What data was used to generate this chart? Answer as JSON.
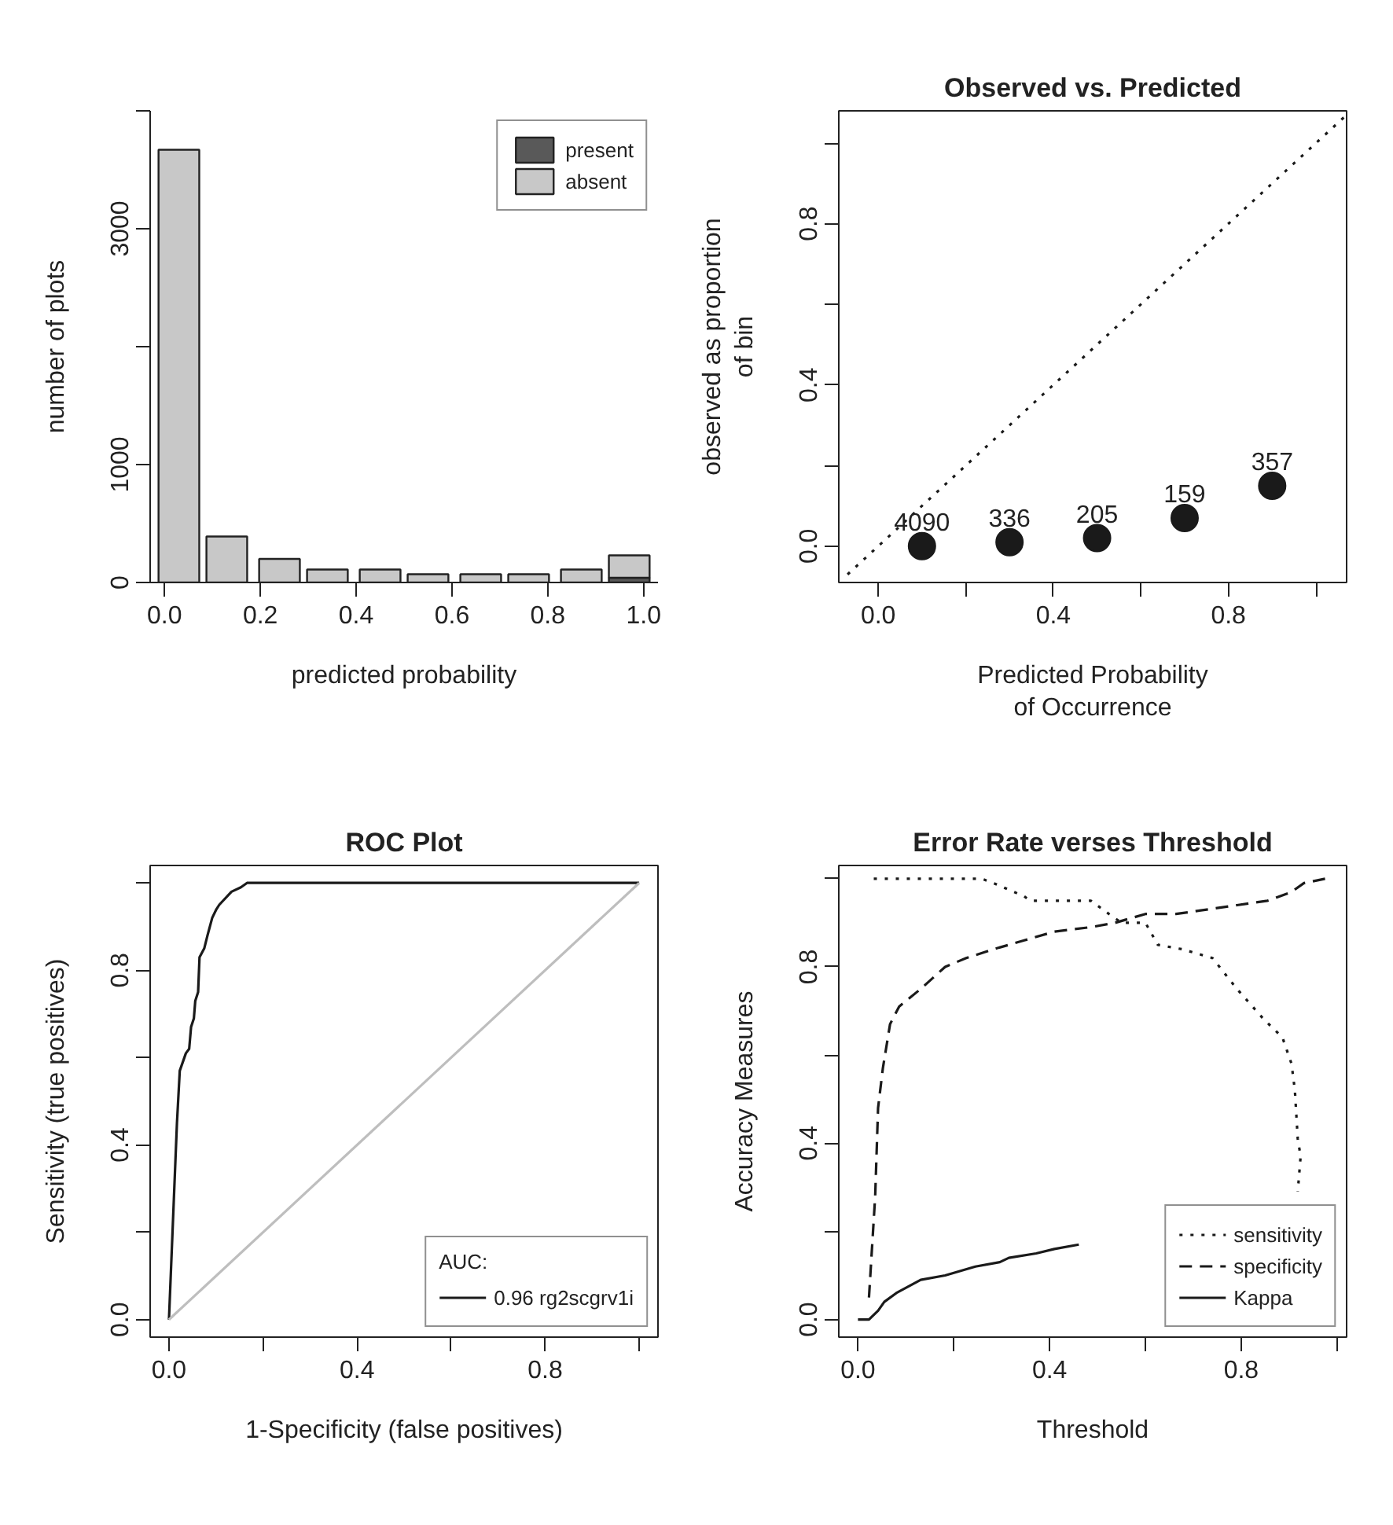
{
  "chart_data": [
    {
      "type": "bar",
      "stacked": true,
      "xlabel": "predicted probability",
      "ylabel": "number of plots",
      "x": [
        0.03,
        0.13,
        0.24,
        0.34,
        0.45,
        0.55,
        0.66,
        0.76,
        0.87,
        0.97
      ],
      "xlim": [
        -0.03,
        1.03
      ],
      "ylim": [
        0,
        4000
      ],
      "xticks": [
        {
          "value": 0,
          "label": "0.0"
        },
        0.2,
        0.4,
        0.6,
        0.8,
        {
          "value": 1,
          "label": "1.0"
        }
      ],
      "yticks": [
        0,
        1000,
        {
          "value": 2000,
          "label": null
        },
        3000,
        {
          "value": 4000,
          "label": null
        }
      ],
      "series": [
        {
          "name": "present",
          "color": "#595959",
          "values": [
            0,
            0,
            0,
            0,
            0,
            0,
            0,
            0,
            0,
            40
          ]
        },
        {
          "name": "absent",
          "color": "#c8c8c8",
          "values": [
            3670,
            390,
            200,
            110,
            110,
            70,
            70,
            70,
            110,
            190
          ]
        }
      ],
      "legend": "top right"
    },
    {
      "type": "scatter",
      "title": "Observed vs. Predicted",
      "xlabel": "Predicted Probability\nof Occurrence",
      "ylabel": "observed as proportion\nof bin",
      "xlim": [
        -0.09,
        1.07
      ],
      "ylim": [
        -0.09,
        1.08
      ],
      "xticks": [
        {
          "value": 0,
          "label": "0.0"
        },
        {
          "value": 0.2,
          "label": null
        },
        0.4,
        {
          "value": 0.6,
          "label": null
        },
        0.8,
        {
          "value": 1,
          "label": null
        }
      ],
      "yticks": [
        {
          "value": 0,
          "label": "0.0"
        },
        {
          "value": 0.2,
          "label": null
        },
        0.4,
        {
          "value": 0.6,
          "label": null
        },
        0.8,
        {
          "value": 1,
          "label": null
        }
      ],
      "annotations": [
        {
          "text": "4090",
          "x": 0.1,
          "y": 0.0
        },
        {
          "text": "336",
          "x": 0.3,
          "y": 0.01
        },
        {
          "text": "205",
          "x": 0.5,
          "y": 0.02
        },
        {
          "text": "159",
          "x": 0.7,
          "y": 0.07
        },
        {
          "text": "357",
          "x": 0.9,
          "y": 0.15
        }
      ],
      "series": [
        {
          "type": "scatter",
          "color": "#1a1a1a",
          "marker": "circle",
          "x": [
            0.1,
            0.3,
            0.5,
            0.7,
            0.9
          ],
          "values": [
            0.0,
            0.01,
            0.02,
            0.07,
            0.15
          ]
        },
        {
          "type": "line",
          "color": "#1a1a1a",
          "line_style": "dotted",
          "x": [
            -0.07,
            1.07
          ],
          "values": [
            -0.07,
            1.07
          ]
        }
      ]
    },
    {
      "type": "line",
      "title": "ROC Plot",
      "xlabel": "1-Specificity (false positives)",
      "ylabel": "Sensitivity (true positives)",
      "xlim": [
        -0.04,
        1.04
      ],
      "ylim": [
        -0.04,
        1.04
      ],
      "xticks": [
        {
          "value": 0,
          "label": "0.0"
        },
        {
          "value": 0.2,
          "label": null
        },
        0.4,
        {
          "value": 0.6,
          "label": null
        },
        0.8,
        {
          "value": 1,
          "label": null
        }
      ],
      "yticks": [
        {
          "value": 0,
          "label": "0.0"
        },
        {
          "value": 0.2,
          "label": null
        },
        0.4,
        {
          "value": 0.6,
          "label": null
        },
        0.8,
        {
          "value": 1,
          "label": null
        }
      ],
      "legend_title": "AUC:",
      "legend": "bottom right",
      "series": [
        {
          "name": "0.96 rg2scgrv1i",
          "color": "#1a1a1a",
          "line_style": "solid",
          "x": [
            0,
            0.017,
            0.023,
            0.036,
            0.043,
            0.047,
            0.053,
            0.056,
            0.062,
            0.065,
            0.075,
            0.082,
            0.092,
            0.101,
            0.107,
            0.133,
            0.153,
            0.166,
            1.0
          ],
          "values": [
            0,
            0.45,
            0.57,
            0.61,
            0.62,
            0.67,
            0.69,
            0.73,
            0.75,
            0.83,
            0.85,
            0.88,
            0.92,
            0.94,
            0.95,
            0.98,
            0.99,
            1.0,
            1.0
          ]
        },
        {
          "color": "#bebebe",
          "line_style": "solid",
          "x": [
            0,
            1
          ],
          "values": [
            0,
            1
          ]
        }
      ]
    },
    {
      "type": "line",
      "title": "Error Rate verses Threshold",
      "xlabel": "Threshold",
      "ylabel": "Accuracy Measures",
      "xlim": [
        -0.04,
        1.02
      ],
      "ylim": [
        -0.04,
        1.03
      ],
      "xticks": [
        {
          "value": 0,
          "label": "0.0"
        },
        {
          "value": 0.2,
          "label": null
        },
        0.4,
        {
          "value": 0.6,
          "label": null
        },
        0.8,
        {
          "value": 1,
          "label": null
        }
      ],
      "yticks": [
        {
          "value": 0,
          "label": "0.0"
        },
        {
          "value": 0.2,
          "label": null
        },
        0.4,
        {
          "value": 0.6,
          "label": null
        },
        0.8,
        {
          "value": 1,
          "label": null
        }
      ],
      "legend": "bottom right",
      "series": [
        {
          "name": "sensitivity",
          "color": "#1a1a1a",
          "line_style": "dotted",
          "x": [
            0.033,
            0.258,
            0.283,
            0.347,
            0.359,
            0.486,
            0.524,
            0.55,
            0.6,
            0.626,
            0.677,
            0.74,
            0.791,
            0.848,
            0.886,
            0.905,
            0.912,
            0.918,
            0.924,
            0.918
          ],
          "values": [
            1.0,
            1.0,
            0.99,
            0.96,
            0.95,
            0.95,
            0.92,
            0.9,
            0.9,
            0.85,
            0.84,
            0.82,
            0.75,
            0.68,
            0.64,
            0.58,
            0.52,
            0.41,
            0.37,
            0.29
          ]
        },
        {
          "name": "specificity",
          "color": "#1a1a1a",
          "line_style": "dashed",
          "x": [
            0.023,
            0.036,
            0.042,
            0.052,
            0.067,
            0.086,
            0.131,
            0.182,
            0.226,
            0.283,
            0.347,
            0.41,
            0.486,
            0.537,
            0.6,
            0.664,
            0.728,
            0.791,
            0.855,
            0.905,
            0.931,
            0.975
          ],
          "values": [
            0.05,
            0.28,
            0.48,
            0.57,
            0.67,
            0.71,
            0.75,
            0.8,
            0.82,
            0.84,
            0.86,
            0.88,
            0.89,
            0.9,
            0.92,
            0.92,
            0.93,
            0.94,
            0.95,
            0.97,
            0.99,
            1.0
          ]
        },
        {
          "name": "Kappa",
          "color": "#1a1a1a",
          "line_style": "solid",
          "x": [
            0,
            0.023,
            0.042,
            0.055,
            0.08,
            0.131,
            0.182,
            0.245,
            0.296,
            0.315,
            0.372,
            0.41,
            0.461
          ],
          "values": [
            0,
            0,
            0.02,
            0.04,
            0.06,
            0.09,
            0.1,
            0.12,
            0.13,
            0.14,
            0.15,
            0.16,
            0.17
          ]
        }
      ]
    }
  ]
}
